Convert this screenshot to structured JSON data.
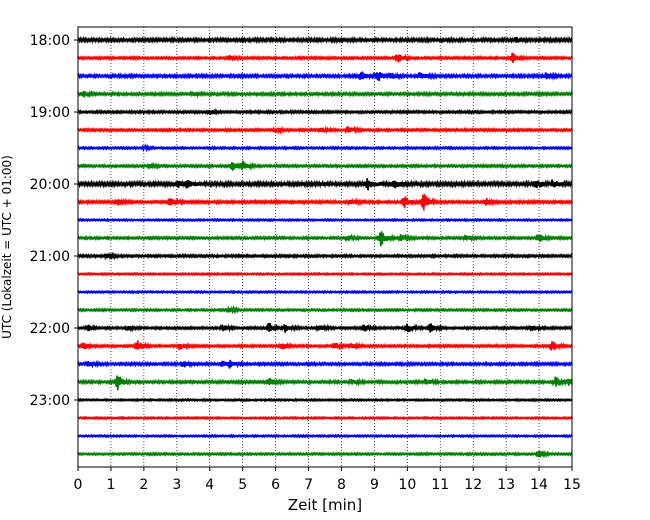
{
  "chart_data": {
    "type": "line",
    "title": "",
    "xlabel": "Zeit  [min]",
    "ylabel": "UTC (Lokalzeit = UTC + 01:00)",
    "x_ticks": [
      "0",
      "1",
      "2",
      "3",
      "4",
      "5",
      "6",
      "7",
      "8",
      "9",
      "10",
      "11",
      "12",
      "13",
      "14",
      "15"
    ],
    "xlim": [
      0,
      15
    ],
    "y_ticks": [
      "18:00",
      "19:00",
      "20:00",
      "21:00",
      "22:00",
      "23:00"
    ],
    "grid": "vertical dotted lines at each minute",
    "legend": "none",
    "trace_interval_minutes": 15,
    "colors": [
      "#000000",
      "#ff0000",
      "#0000ff",
      "#008000"
    ],
    "series": [
      {
        "start": "18:00",
        "color": "#000000",
        "noise": 0.8,
        "events": [
          [
            13.3,
            1.0
          ]
        ]
      },
      {
        "start": "18:15",
        "color": "#ff0000",
        "noise": 0.5,
        "events": [
          [
            4.6,
            1.0
          ],
          [
            9.7,
            2.2
          ],
          [
            13.2,
            2.5
          ]
        ]
      },
      {
        "start": "18:30",
        "color": "#0000ff",
        "noise": 0.7,
        "events": [
          [
            8.6,
            2.0
          ],
          [
            9.1,
            2.6
          ],
          [
            9.5,
            1.5
          ],
          [
            10.4,
            1.6
          ],
          [
            14.2,
            1.4
          ]
        ]
      },
      {
        "start": "18:45",
        "color": "#008000",
        "noise": 0.6,
        "events": [
          [
            0.2,
            1.4
          ],
          [
            3.5,
            1.0
          ]
        ]
      },
      {
        "start": "19:00",
        "color": "#000000",
        "noise": 0.5,
        "events": [
          [
            4.0,
            1.0
          ]
        ]
      },
      {
        "start": "19:15",
        "color": "#ff0000",
        "noise": 0.5,
        "events": [
          [
            6.0,
            1.0
          ],
          [
            7.4,
            1.0
          ],
          [
            8.2,
            1.4
          ]
        ]
      },
      {
        "start": "19:30",
        "color": "#0000ff",
        "noise": 0.4,
        "events": [
          [
            2.0,
            0.8
          ]
        ]
      },
      {
        "start": "19:45",
        "color": "#008000",
        "noise": 0.5,
        "events": [
          [
            4.7,
            2.4
          ],
          [
            5.0,
            2.0
          ],
          [
            2.2,
            0.9
          ]
        ]
      },
      {
        "start": "20:00",
        "color": "#000000",
        "noise": 1.0,
        "events": [
          [
            3.0,
            1.6
          ],
          [
            3.3,
            1.6
          ],
          [
            8.8,
            2.6
          ],
          [
            9.6,
            1.6
          ],
          [
            13.9,
            2.2
          ],
          [
            14.4,
            2.0
          ]
        ]
      },
      {
        "start": "20:15",
        "color": "#ff0000",
        "noise": 0.6,
        "events": [
          [
            1.2,
            1.5
          ],
          [
            2.8,
            1.6
          ],
          [
            8.3,
            1.2
          ],
          [
            9.9,
            3.2
          ],
          [
            10.5,
            4.0
          ],
          [
            12.4,
            1.5
          ]
        ]
      },
      {
        "start": "20:30",
        "color": "#0000ff",
        "noise": 0.3,
        "events": []
      },
      {
        "start": "20:45",
        "color": "#008000",
        "noise": 0.5,
        "events": [
          [
            8.2,
            1.2
          ],
          [
            9.2,
            3.8
          ],
          [
            9.8,
            1.8
          ],
          [
            11.8,
            1.2
          ],
          [
            14.0,
            2.0
          ]
        ]
      },
      {
        "start": "21:00",
        "color": "#000000",
        "noise": 0.5,
        "events": [
          [
            0.9,
            1.2
          ]
        ]
      },
      {
        "start": "21:15",
        "color": "#ff0000",
        "noise": 0.3,
        "events": []
      },
      {
        "start": "21:30",
        "color": "#0000ff",
        "noise": 0.3,
        "events": []
      },
      {
        "start": "21:45",
        "color": "#008000",
        "noise": 0.4,
        "events": [
          [
            4.6,
            1.0
          ]
        ]
      },
      {
        "start": "22:00",
        "color": "#000000",
        "noise": 0.5,
        "events": [
          [
            0.3,
            1.4
          ],
          [
            1.5,
            1.2
          ],
          [
            4.4,
            1.4
          ],
          [
            5.8,
            2.4
          ],
          [
            6.3,
            2.2
          ],
          [
            7.3,
            1.5
          ],
          [
            8.7,
            1.4
          ],
          [
            10.0,
            2.2
          ],
          [
            10.7,
            2.0
          ],
          [
            13.8,
            1.4
          ]
        ]
      },
      {
        "start": "22:15",
        "color": "#ff0000",
        "noise": 0.5,
        "events": [
          [
            0.2,
            1.5
          ],
          [
            1.8,
            3.0
          ],
          [
            3.1,
            1.5
          ],
          [
            6.2,
            1.5
          ],
          [
            7.8,
            1.4
          ],
          [
            8.3,
            1.2
          ],
          [
            14.4,
            2.5
          ]
        ]
      },
      {
        "start": "22:30",
        "color": "#0000ff",
        "noise": 0.6,
        "events": [
          [
            0.3,
            1.4
          ],
          [
            3.2,
            1.5
          ],
          [
            4.4,
            1.5
          ],
          [
            4.6,
            1.4
          ]
        ]
      },
      {
        "start": "22:45",
        "color": "#008000",
        "noise": 0.6,
        "events": [
          [
            1.2,
            4.0
          ],
          [
            5.8,
            1.8
          ],
          [
            8.3,
            1.2
          ],
          [
            10.6,
            1.2
          ],
          [
            14.5,
            2.5
          ],
          [
            14.9,
            1.5
          ]
        ]
      },
      {
        "start": "23:00",
        "color": "#000000",
        "noise": 0.3,
        "events": []
      },
      {
        "start": "23:15",
        "color": "#ff0000",
        "noise": 0.3,
        "events": []
      },
      {
        "start": "23:30",
        "color": "#0000ff",
        "noise": 0.3,
        "events": []
      },
      {
        "start": "23:45",
        "color": "#008000",
        "noise": 0.4,
        "events": [
          [
            14.0,
            2.0
          ]
        ]
      }
    ]
  }
}
